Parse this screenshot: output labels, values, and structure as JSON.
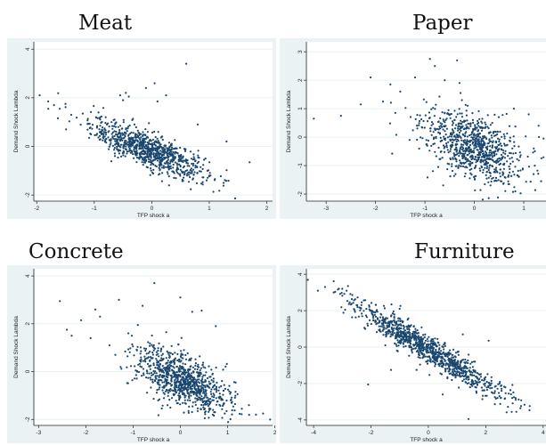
{
  "colors": {
    "marker": "#1a476f",
    "outer_bg": "#eaf2f3",
    "plot_bg": "#ffffff",
    "grid": "#eaf2f3",
    "axis": "#222222"
  },
  "chart_data": [
    {
      "type": "scatter",
      "title": "Meat",
      "xlabel": "TFP shock a",
      "ylabel": "Demand Shock Lambda",
      "xlim": [
        -2.05,
        2.1
      ],
      "ylim": [
        -2.25,
        4.3
      ],
      "xticks": [
        -2,
        -1,
        0,
        1,
        2
      ],
      "yticks": [
        -2,
        0,
        2,
        4
      ],
      "grid": true,
      "trend": {
        "slope": -0.9,
        "intercept": -0.2,
        "spread": 0.35,
        "x_mean": -0.05,
        "x_sd": 0.5,
        "n": 900
      },
      "points": [
        [
          -1.95,
          2.1
        ],
        [
          -1.8,
          1.85
        ],
        [
          -1.7,
          1.7
        ],
        [
          -1.6,
          1.55
        ],
        [
          -1.5,
          1.75
        ],
        [
          -1.4,
          1.3
        ],
        [
          -1.2,
          1.35
        ],
        [
          -0.9,
          0.6
        ],
        [
          -0.8,
          1.2
        ],
        [
          -0.55,
          2.1
        ],
        [
          -0.5,
          1.9
        ],
        [
          -0.45,
          2.2
        ],
        [
          -0.4,
          2.05
        ],
        [
          -0.1,
          2.4
        ],
        [
          0.05,
          2.6
        ],
        [
          0.1,
          1.85
        ],
        [
          0.25,
          2.1
        ],
        [
          0.6,
          3.4
        ],
        [
          0.8,
          0.9
        ],
        [
          1.3,
          0.2
        ],
        [
          1.7,
          -0.65
        ],
        [
          1.25,
          -1.5
        ],
        [
          1.0,
          -1.2
        ],
        [
          0.3,
          -1.6
        ],
        [
          -0.3,
          0.9
        ],
        [
          -0.7,
          1.0
        ]
      ]
    },
    {
      "type": "scatter",
      "title": "Paper",
      "xlabel": "TFP shock a",
      "ylabel": "Demand Shock Lambda",
      "xlim": [
        -3.4,
        1.45
      ],
      "ylim": [
        -2.25,
        3.35
      ],
      "xticks": [
        -3,
        -2,
        -1,
        0,
        1
      ],
      "yticks": [
        -2,
        -1,
        0,
        1,
        2,
        3
      ],
      "grid": true,
      "trend": {
        "slope": -0.62,
        "intercept": -0.35,
        "spread": 0.55,
        "x_mean": -0.05,
        "x_sd": 0.5,
        "n": 850
      },
      "points": [
        [
          -3.25,
          0.65
        ],
        [
          -2.7,
          0.75
        ],
        [
          -2.3,
          1.15
        ],
        [
          -2.1,
          2.1
        ],
        [
          -1.85,
          1.25
        ],
        [
          -1.7,
          1.85
        ],
        [
          -1.5,
          1.6
        ],
        [
          -1.2,
          2.1
        ],
        [
          -0.9,
          2.75
        ],
        [
          -0.8,
          2.5
        ],
        [
          -0.6,
          2.0
        ],
        [
          -0.35,
          2.7
        ],
        [
          -0.3,
          1.9
        ],
        [
          -1.6,
          0.85
        ],
        [
          0.9,
          -1.4
        ],
        [
          1.2,
          -1.3
        ],
        [
          1.35,
          -1.55
        ],
        [
          1.4,
          -0.05
        ],
        [
          1.1,
          0.8
        ],
        [
          1.3,
          0.4
        ],
        [
          0.8,
          1.0
        ]
      ]
    },
    {
      "type": "scatter",
      "title": "Concrete",
      "xlabel": "TFP shock a",
      "ylabel": "Demand Shock Lambda",
      "xlim": [
        -3.1,
        1.95
      ],
      "ylim": [
        -2.25,
        4.3
      ],
      "xticks": [
        -3,
        -2,
        -1,
        0,
        1,
        2
      ],
      "yticks": [
        -2,
        0,
        2,
        4
      ],
      "grid": true,
      "trend": {
        "slope": -0.75,
        "intercept": -0.35,
        "spread": 0.55,
        "x_mean": 0.05,
        "x_sd": 0.5,
        "n": 900
      },
      "points": [
        [
          -2.55,
          2.95
        ],
        [
          -2.4,
          1.75
        ],
        [
          -2.3,
          1.5
        ],
        [
          -2.1,
          2.15
        ],
        [
          -1.9,
          1.4
        ],
        [
          -1.7,
          2.3
        ],
        [
          -1.5,
          1.1
        ],
        [
          -1.3,
          3.0
        ],
        [
          -1.1,
          1.6
        ],
        [
          -0.8,
          2.75
        ],
        [
          -0.55,
          3.7
        ],
        [
          -0.3,
          1.65
        ],
        [
          0.0,
          3.1
        ],
        [
          0.25,
          2.5
        ],
        [
          0.45,
          2.55
        ],
        [
          0.75,
          1.9
        ],
        [
          1.45,
          -1.4
        ],
        [
          1.6,
          -1.8
        ],
        [
          1.75,
          -1.75
        ],
        [
          1.3,
          -1.55
        ],
        [
          -0.9,
          1.95
        ],
        [
          -1.8,
          2.6
        ]
      ]
    },
    {
      "type": "scatter",
      "title": "Furniture",
      "xlabel": "TFP shock a",
      "ylabel": "Demand Shock Lambda",
      "xlim": [
        -4.25,
        4.1
      ],
      "ylim": [
        -4.3,
        4.3
      ],
      "xticks": [
        -4,
        -2,
        0,
        2,
        4
      ],
      "yticks": [
        -4,
        -2,
        0,
        2,
        4
      ],
      "grid": true,
      "trend": {
        "slope": -0.95,
        "intercept": -0.15,
        "spread": 0.4,
        "x_mean": -0.1,
        "x_sd": 1.3,
        "n": 1000
      },
      "points": [
        [
          -3.85,
          3.1
        ],
        [
          -3.6,
          3.3
        ],
        [
          -3.3,
          3.0
        ],
        [
          -3.0,
          3.2
        ],
        [
          -2.8,
          3.35
        ],
        [
          -2.5,
          2.3
        ],
        [
          -2.2,
          1.0
        ],
        [
          -1.5,
          0.1
        ],
        [
          -0.6,
          1.2
        ],
        [
          -2.1,
          -2.05
        ],
        [
          -1.3,
          -1.25
        ],
        [
          1.2,
          0.7
        ],
        [
          2.1,
          0.35
        ],
        [
          2.55,
          -2.4
        ],
        [
          2.8,
          -2.55
        ],
        [
          2.2,
          -1.65
        ],
        [
          1.4,
          -3.95
        ],
        [
          0.3,
          -0.3
        ],
        [
          -2.9,
          2.05
        ],
        [
          -1.0,
          2.1
        ],
        [
          0.5,
          -2.6
        ]
      ]
    }
  ]
}
